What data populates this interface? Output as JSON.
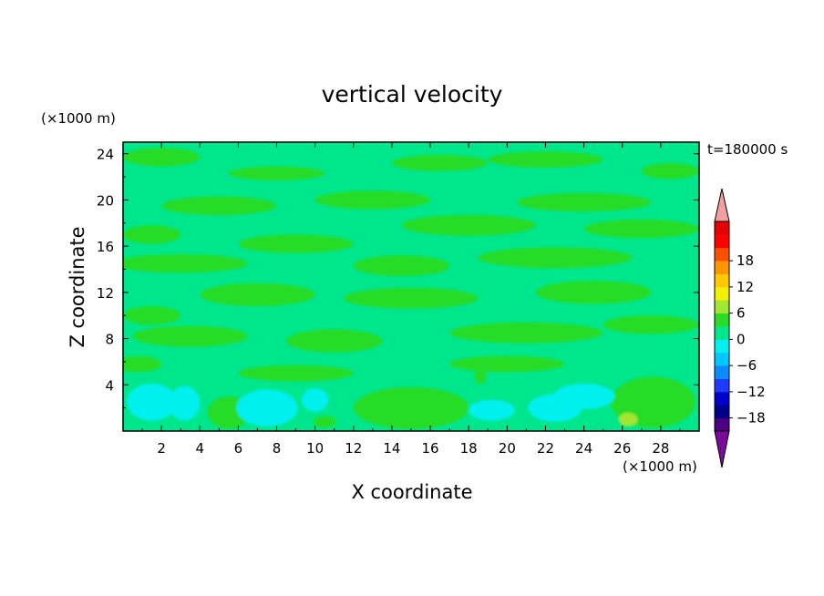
{
  "chart_data": {
    "type": "heatmap",
    "title": "vertical velocity",
    "xlabel": "X coordinate",
    "ylabel": "Z coordinate",
    "x_unit": "(×1000 m)",
    "y_unit": "(×1000 m)",
    "time_label": "t=180000 s",
    "xlim": [
      0,
      30
    ],
    "ylim": [
      0,
      25
    ],
    "x_ticks": [
      2,
      4,
      6,
      8,
      10,
      12,
      14,
      16,
      18,
      20,
      22,
      24,
      26,
      28
    ],
    "y_ticks": [
      4,
      8,
      12,
      16,
      20,
      24
    ],
    "colorbar": {
      "levels": [
        -21,
        -18,
        -15,
        -12,
        -9,
        -6,
        -3,
        0,
        3,
        6,
        9,
        12,
        15,
        18,
        21
      ],
      "colors": [
        "#4b0082",
        "#00008b",
        "#0000cd",
        "#1e3cff",
        "#0a8cff",
        "#00c8ff",
        "#00f0f0",
        "#00e68c",
        "#28dc28",
        "#a0e632",
        "#f0f000",
        "#ffc800",
        "#ff9600",
        "#ff5000",
        "#ff0000",
        "#e60000"
      ],
      "under_color": "#7a0a9a",
      "over_color": "#f0a0a0",
      "tick_labels": [
        "18",
        "12",
        "6",
        "0",
        "−6",
        "−12",
        "−18"
      ]
    },
    "blobs": [
      {
        "x": 5.5,
        "z": 1.5,
        "w": 0.7,
        "h": 0.9,
        "value": 5
      },
      {
        "x": 5.5,
        "z": 1.6,
        "w": 1.1,
        "h": 1.4,
        "value": 2
      },
      {
        "x": 15.0,
        "z": 2.0,
        "w": 2.0,
        "h": 1.1,
        "value": 5
      },
      {
        "x": 15.0,
        "z": 2.0,
        "w": 3.0,
        "h": 1.8,
        "value": 2
      },
      {
        "x": 28.0,
        "z": 3.0,
        "w": 1.0,
        "h": 0.9,
        "value": 5
      },
      {
        "x": 27.6,
        "z": 2.5,
        "w": 2.2,
        "h": 2.2,
        "value": 2
      },
      {
        "x": 26.3,
        "z": 1.0,
        "w": 0.5,
        "h": 0.6,
        "value": 5
      },
      {
        "x": 1.5,
        "z": 2.5,
        "w": 1.3,
        "h": 1.6,
        "value": -4
      },
      {
        "x": 3.2,
        "z": 2.4,
        "w": 0.8,
        "h": 1.5,
        "value": -4
      },
      {
        "x": 10.0,
        "z": 2.7,
        "w": 0.7,
        "h": 1.0,
        "value": -4
      },
      {
        "x": 19.2,
        "z": 1.8,
        "w": 1.2,
        "h": 0.9,
        "value": -4
      },
      {
        "x": 24.0,
        "z": 3.0,
        "w": 1.6,
        "h": 1.1,
        "value": -4
      },
      {
        "x": 7.5,
        "z": 2.0,
        "w": 1.6,
        "h": 1.6,
        "value": -4
      },
      {
        "x": 22.5,
        "z": 2.0,
        "w": 1.4,
        "h": 1.2,
        "value": -4
      },
      {
        "x": 10.5,
        "z": 0.8,
        "w": 0.6,
        "h": 0.5,
        "value": 2
      },
      {
        "x": 18.6,
        "z": 4.7,
        "w": 0.3,
        "h": 0.6,
        "value": 2
      },
      {
        "x": 3.5,
        "z": 8.2,
        "w": 3.0,
        "h": 0.9,
        "value": 1
      },
      {
        "x": 11.0,
        "z": 7.8,
        "w": 2.5,
        "h": 1.0,
        "value": 1
      },
      {
        "x": 21.0,
        "z": 8.5,
        "w": 4.0,
        "h": 0.9,
        "value": 1
      },
      {
        "x": 27.5,
        "z": 9.2,
        "w": 2.5,
        "h": 0.8,
        "value": 1
      },
      {
        "x": 1.5,
        "z": 10.0,
        "w": 1.5,
        "h": 0.8,
        "value": 1
      },
      {
        "x": 7.0,
        "z": 11.8,
        "w": 3.0,
        "h": 1.0,
        "value": 1
      },
      {
        "x": 15.0,
        "z": 11.5,
        "w": 3.5,
        "h": 0.9,
        "value": 1
      },
      {
        "x": 24.5,
        "z": 12.0,
        "w": 3.0,
        "h": 1.0,
        "value": 1
      },
      {
        "x": 3.0,
        "z": 14.5,
        "w": 3.5,
        "h": 0.8,
        "value": 1
      },
      {
        "x": 14.5,
        "z": 14.3,
        "w": 2.5,
        "h": 0.9,
        "value": 1
      },
      {
        "x": 22.5,
        "z": 15.0,
        "w": 4.0,
        "h": 0.9,
        "value": 1
      },
      {
        "x": 9.0,
        "z": 16.2,
        "w": 3.0,
        "h": 0.8,
        "value": 1
      },
      {
        "x": 1.5,
        "z": 17.0,
        "w": 1.5,
        "h": 0.8,
        "value": 1
      },
      {
        "x": 18.0,
        "z": 17.8,
        "w": 3.5,
        "h": 0.9,
        "value": 1
      },
      {
        "x": 27.0,
        "z": 17.5,
        "w": 3.0,
        "h": 0.8,
        "value": 1
      },
      {
        "x": 5.0,
        "z": 19.5,
        "w": 3.0,
        "h": 0.8,
        "value": 1
      },
      {
        "x": 13.0,
        "z": 20.0,
        "w": 3.0,
        "h": 0.8,
        "value": 1
      },
      {
        "x": 24.0,
        "z": 19.8,
        "w": 3.5,
        "h": 0.8,
        "value": 1
      },
      {
        "x": 8.0,
        "z": 22.3,
        "w": 2.5,
        "h": 0.6,
        "value": 1
      },
      {
        "x": 16.5,
        "z": 23.2,
        "w": 2.5,
        "h": 0.7,
        "value": 1
      },
      {
        "x": 2.0,
        "z": 23.7,
        "w": 2.0,
        "h": 0.8,
        "value": 1
      },
      {
        "x": 22.0,
        "z": 23.5,
        "w": 3.0,
        "h": 0.7,
        "value": 1
      },
      {
        "x": 28.5,
        "z": 22.5,
        "w": 1.5,
        "h": 0.7,
        "value": 1
      },
      {
        "x": 9.0,
        "z": 5.0,
        "w": 3.0,
        "h": 0.7,
        "value": 1
      },
      {
        "x": 20.0,
        "z": 5.8,
        "w": 3.0,
        "h": 0.7,
        "value": 1
      },
      {
        "x": 0.8,
        "z": 5.8,
        "w": 1.2,
        "h": 0.7,
        "value": 1
      }
    ]
  }
}
